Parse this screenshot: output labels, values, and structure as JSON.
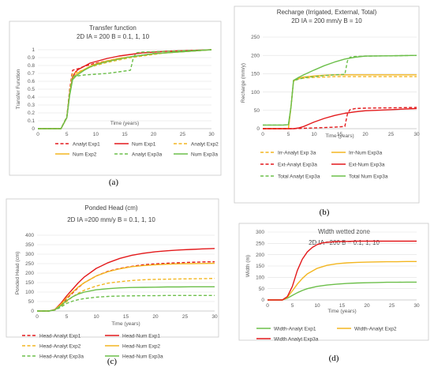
{
  "colors": {
    "red": "#e3191b",
    "orange": "#f3b620",
    "green": "#6cbf4a"
  },
  "chart_data": [
    {
      "type": "line",
      "caption": "(a)",
      "title_lines": [
        "Transfer function",
        "2D IA = 200 B = 0.1, 1, 10"
      ],
      "xlabel": "Time (years)",
      "ylabel": "Transfer Function",
      "xlim": [
        0,
        30
      ],
      "ylim": [
        0,
        1
      ],
      "xticks": [
        0,
        5,
        10,
        15,
        20,
        25,
        30
      ],
      "yticks": [
        0,
        0.1,
        0.2,
        0.3,
        0.4,
        0.5,
        0.6,
        0.7,
        0.8,
        0.9,
        1
      ],
      "ytick_labels": [
        "0",
        "0.1",
        "0.2",
        "0.3",
        "0.4",
        "0.5",
        "0.6",
        "0.7",
        "0.8",
        "0.9",
        "1"
      ],
      "grid": "horizontal",
      "legend_columns": 3,
      "series": [
        {
          "name": "Analyt Exp1",
          "color": "red",
          "dash": "dashed",
          "x": [
            0,
            4,
            5,
            5.5,
            6,
            6.5,
            7,
            8,
            9,
            10,
            12,
            14,
            16,
            18,
            20,
            22,
            24,
            26,
            28,
            30
          ],
          "y": [
            0,
            0,
            0.15,
            0.5,
            0.74,
            0.75,
            0.76,
            0.79,
            0.81,
            0.83,
            0.86,
            0.89,
            0.91,
            0.93,
            0.95,
            0.96,
            0.97,
            0.98,
            0.99,
            1
          ]
        },
        {
          "name": "Num Exp1",
          "color": "red",
          "dash": "solid",
          "x": [
            0,
            4,
            5,
            5.5,
            6,
            6.5,
            7,
            8,
            9,
            10,
            12,
            14,
            16,
            18,
            20,
            22,
            24,
            26,
            28,
            30
          ],
          "y": [
            0,
            0,
            0.14,
            0.45,
            0.65,
            0.72,
            0.75,
            0.79,
            0.83,
            0.85,
            0.89,
            0.92,
            0.94,
            0.96,
            0.97,
            0.98,
            0.985,
            0.99,
            0.995,
            1
          ]
        },
        {
          "name": "Analyt Exp2",
          "color": "orange",
          "dash": "dashed",
          "x": [
            0,
            4,
            5,
            5.5,
            6,
            6.5,
            7,
            8,
            9,
            10,
            12,
            14,
            16,
            18,
            20,
            22,
            24,
            26,
            28,
            30
          ],
          "y": [
            0,
            0,
            0.15,
            0.48,
            0.7,
            0.71,
            0.72,
            0.75,
            0.78,
            0.8,
            0.84,
            0.87,
            0.9,
            0.92,
            0.94,
            0.96,
            0.97,
            0.98,
            0.99,
            1
          ]
        },
        {
          "name": "Num Exp2",
          "color": "orange",
          "dash": "solid",
          "x": [
            0,
            4,
            5,
            5.5,
            6,
            6.5,
            7,
            8,
            9,
            10,
            12,
            14,
            16,
            18,
            20,
            22,
            24,
            26,
            28,
            30
          ],
          "y": [
            0,
            0,
            0.14,
            0.44,
            0.63,
            0.68,
            0.71,
            0.75,
            0.79,
            0.82,
            0.86,
            0.89,
            0.91,
            0.93,
            0.95,
            0.96,
            0.97,
            0.98,
            0.99,
            1
          ]
        },
        {
          "name": "Analyt Exp3a",
          "color": "green",
          "dash": "dashed",
          "x": [
            0,
            4,
            5,
            5.5,
            6,
            6.5,
            7,
            8,
            10,
            12,
            14,
            15,
            16,
            16.5,
            17,
            18,
            20,
            22,
            24,
            26,
            28,
            30
          ],
          "y": [
            0,
            0,
            0.15,
            0.45,
            0.66,
            0.67,
            0.67,
            0.68,
            0.69,
            0.7,
            0.72,
            0.73,
            0.74,
            0.9,
            0.96,
            0.97,
            0.975,
            0.98,
            0.985,
            0.99,
            0.995,
            1
          ]
        },
        {
          "name": "Num Exp3a",
          "color": "green",
          "dash": "solid",
          "x": [
            0,
            4,
            5,
            5.5,
            6,
            6.5,
            7,
            8,
            9,
            10,
            12,
            14,
            16,
            18,
            20,
            22,
            24,
            26,
            28,
            30
          ],
          "y": [
            0,
            0,
            0.14,
            0.42,
            0.62,
            0.66,
            0.69,
            0.74,
            0.78,
            0.81,
            0.85,
            0.88,
            0.91,
            0.93,
            0.95,
            0.96,
            0.97,
            0.98,
            0.99,
            1
          ]
        }
      ]
    },
    {
      "type": "line",
      "caption": "(b)",
      "title_lines": [
        "Recharge (Irrigated, External, Total)",
        "2D IA = 200 mm/y B = 10"
      ],
      "xlabel": "Time (years)",
      "ylabel": "Recharge (mm/y)",
      "xlim": [
        0,
        30
      ],
      "ylim": [
        0,
        250
      ],
      "xticks": [
        0,
        5,
        10,
        15,
        20,
        25,
        30
      ],
      "yticks": [
        0,
        50,
        100,
        150,
        200,
        250
      ],
      "ytick_labels": [
        "0",
        "50",
        "100",
        "150",
        "200",
        "250"
      ],
      "grid": "horizontal",
      "legend_columns": 2,
      "series": [
        {
          "name": "Irr-Analyt Exp 3a",
          "color": "orange",
          "dash": "dashed",
          "x": [
            0,
            5,
            5.5,
            6,
            7,
            8,
            10,
            12,
            14,
            16,
            18,
            20,
            25,
            30
          ],
          "y": [
            0,
            0,
            60,
            130,
            136,
            138,
            140,
            141,
            142,
            142,
            142,
            142,
            142,
            142
          ]
        },
        {
          "name": "Irr-Num Exp3a",
          "color": "orange",
          "dash": "solid",
          "x": [
            0,
            5,
            5.5,
            6,
            7,
            8,
            10,
            12,
            14,
            16,
            18,
            20,
            25,
            30
          ],
          "y": [
            0,
            0,
            60,
            132,
            138,
            141,
            144,
            146,
            147,
            147,
            147,
            147,
            147,
            147
          ]
        },
        {
          "name": "Ext-Analyt Exp3a",
          "color": "red",
          "dash": "dashed",
          "x": [
            0,
            5,
            6,
            8,
            10,
            12,
            14,
            16,
            16.5,
            17,
            18,
            20,
            25,
            30
          ],
          "y": [
            0,
            0,
            0,
            1,
            2,
            3,
            4,
            6,
            40,
            52,
            55,
            56,
            57,
            58
          ]
        },
        {
          "name": "Ext-Num Exp3a",
          "color": "red",
          "dash": "solid",
          "x": [
            0,
            5,
            6,
            7,
            8,
            9,
            10,
            12,
            14,
            16,
            18,
            20,
            25,
            30
          ],
          "y": [
            0,
            0,
            0,
            2,
            6,
            12,
            18,
            28,
            36,
            42,
            46,
            49,
            52,
            55
          ]
        },
        {
          "name": "Total Analyt Exp3a",
          "color": "green",
          "dash": "dashed",
          "x": [
            0,
            4,
            5,
            5.5,
            6,
            8,
            10,
            12,
            14,
            16,
            16.5,
            17,
            18,
            20,
            25,
            30
          ],
          "y": [
            10,
            10,
            11,
            60,
            131,
            139,
            142,
            145,
            147,
            148,
            185,
            195,
            197,
            198,
            199,
            200
          ]
        },
        {
          "name": "Total Num Exp3a",
          "color": "green",
          "dash": "solid",
          "x": [
            0,
            4,
            5,
            5.5,
            6,
            7,
            8,
            10,
            12,
            14,
            16,
            18,
            20,
            25,
            30
          ],
          "y": [
            10,
            10,
            11,
            60,
            132,
            140,
            147,
            160,
            172,
            182,
            190,
            195,
            198,
            199,
            200
          ]
        }
      ]
    },
    {
      "type": "line",
      "caption": "(c)",
      "title_lines": [
        "Ponded Head (cm)",
        "2D IA =200 mm/y B = 0.1, 1, 10"
      ],
      "xlabel": "Time (years)",
      "ylabel": "Ponded Head (cm)",
      "xlim": [
        0,
        30
      ],
      "ylim": [
        0,
        400
      ],
      "xticks": [
        0,
        5,
        10,
        15,
        20,
        25,
        30
      ],
      "yticks": [
        0,
        50,
        100,
        150,
        200,
        250,
        300,
        350,
        400
      ],
      "ytick_labels": [
        "0",
        "50",
        "100",
        "150",
        "200",
        "250",
        "300",
        "350",
        "400"
      ],
      "grid": "horizontal",
      "legend_columns": 2,
      "series": [
        {
          "name": "Head-Analyt Exp1",
          "color": "red",
          "dash": "dashed",
          "x": [
            0,
            2,
            3,
            4,
            5,
            6,
            7,
            8,
            10,
            12,
            14,
            16,
            18,
            20,
            22,
            24,
            26,
            28,
            30
          ],
          "y": [
            0,
            0,
            5,
            30,
            65,
            95,
            125,
            150,
            185,
            210,
            225,
            236,
            244,
            249,
            252,
            255,
            257,
            259,
            260
          ]
        },
        {
          "name": "Head-Num Exp1",
          "color": "red",
          "dash": "solid",
          "x": [
            0,
            2,
            3,
            4,
            5,
            6,
            7,
            8,
            10,
            12,
            14,
            16,
            18,
            20,
            22,
            24,
            26,
            28,
            30
          ],
          "y": [
            0,
            0,
            8,
            40,
            80,
            115,
            150,
            180,
            225,
            255,
            278,
            294,
            305,
            313,
            318,
            322,
            325,
            328,
            330
          ]
        },
        {
          "name": "Head-Analyt Exp2",
          "color": "orange",
          "dash": "dashed",
          "x": [
            0,
            2,
            3,
            4,
            5,
            6,
            7,
            8,
            10,
            12,
            14,
            16,
            18,
            20,
            22,
            24,
            26,
            28,
            30
          ],
          "y": [
            0,
            0,
            5,
            25,
            50,
            75,
            95,
            110,
            132,
            147,
            155,
            161,
            165,
            167,
            168,
            169,
            170,
            171,
            172
          ]
        },
        {
          "name": "Head-Num Exp2",
          "color": "orange",
          "dash": "solid",
          "x": [
            0,
            2,
            3,
            4,
            5,
            6,
            7,
            8,
            10,
            12,
            14,
            16,
            18,
            20,
            22,
            24,
            26,
            28,
            30
          ],
          "y": [
            0,
            0,
            7,
            35,
            70,
            100,
            128,
            150,
            185,
            208,
            223,
            234,
            240,
            244,
            247,
            249,
            250,
            251,
            252
          ]
        },
        {
          "name": "Head-Analyt Exp3a",
          "color": "green",
          "dash": "dashed",
          "x": [
            0,
            2,
            3,
            4,
            5,
            6,
            7,
            8,
            10,
            12,
            14,
            16,
            18,
            20,
            22,
            24,
            26,
            28,
            30
          ],
          "y": [
            0,
            0,
            5,
            20,
            40,
            52,
            60,
            66,
            73,
            77,
            79,
            80,
            81,
            81,
            82,
            82,
            82,
            82,
            82
          ]
        },
        {
          "name": "Head-Num Exp3a",
          "color": "green",
          "dash": "solid",
          "x": [
            0,
            2,
            3,
            4,
            5,
            6,
            7,
            8,
            10,
            12,
            14,
            16,
            18,
            20,
            22,
            24,
            26,
            28,
            30
          ],
          "y": [
            0,
            0,
            6,
            28,
            55,
            75,
            90,
            100,
            112,
            118,
            122,
            124,
            125,
            126,
            127,
            127,
            128,
            128,
            128
          ]
        }
      ]
    },
    {
      "type": "line",
      "caption": "(d)",
      "title_lines": [
        "Width wetted zone",
        "2D IA =200 B = 0.1, 1, 10"
      ],
      "xlabel": "Time (years)",
      "ylabel": "Width (m)",
      "xlim": [
        0,
        30
      ],
      "ylim": [
        0,
        300
      ],
      "xticks": [
        0,
        5,
        10,
        15,
        20,
        25,
        30
      ],
      "yticks": [
        0,
        50,
        100,
        150,
        200,
        250,
        300
      ],
      "ytick_labels": [
        "0",
        "50",
        "100",
        "150",
        "200",
        "250",
        "300"
      ],
      "grid": "horizontal",
      "legend_columns": 2,
      "series": [
        {
          "name": "Width-Analyt Exp1",
          "color": "green",
          "dash": "solid",
          "x": [
            0,
            2,
            3,
            4,
            5,
            6,
            7,
            8,
            10,
            12,
            14,
            16,
            18,
            20,
            22,
            24,
            26,
            28,
            30
          ],
          "y": [
            0,
            0,
            0,
            8,
            20,
            32,
            42,
            50,
            60,
            66,
            70,
            73,
            75,
            76,
            77,
            78,
            78,
            79,
            79
          ]
        },
        {
          "name": "Width-Analyt Exp2",
          "color": "orange",
          "dash": "solid",
          "x": [
            0,
            2,
            3,
            4,
            5,
            6,
            7,
            8,
            10,
            12,
            14,
            16,
            18,
            20,
            22,
            24,
            26,
            28,
            30
          ],
          "y": [
            0,
            0,
            0,
            12,
            40,
            70,
            95,
            115,
            140,
            153,
            160,
            164,
            166,
            167,
            168,
            169,
            169,
            170,
            170
          ]
        },
        {
          "name": "Width Analyt Exp3a",
          "color": "red",
          "dash": "solid",
          "x": [
            0,
            2,
            3,
            4,
            5,
            6,
            7,
            8,
            9,
            10,
            11,
            12,
            14,
            16,
            18,
            20,
            22,
            24,
            26,
            28,
            30
          ],
          "y": [
            0,
            0,
            0,
            15,
            60,
            130,
            180,
            212,
            232,
            245,
            252,
            255,
            258,
            259,
            260,
            260,
            260,
            260,
            260,
            260,
            260
          ]
        }
      ]
    }
  ]
}
